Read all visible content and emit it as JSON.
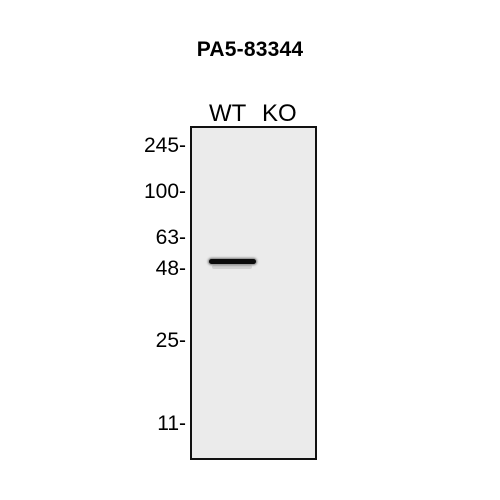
{
  "title": "PA5-83344",
  "lanes": [
    "WT",
    "KO"
  ],
  "markers": [
    "245-",
    "100-",
    "63-",
    "48-",
    "25-",
    "11-"
  ],
  "band": {
    "lane": "WT",
    "marker_near": "48-"
  },
  "colors": {
    "background": "#ebebeb",
    "band": "#0b0b0b",
    "border": "#111111"
  }
}
